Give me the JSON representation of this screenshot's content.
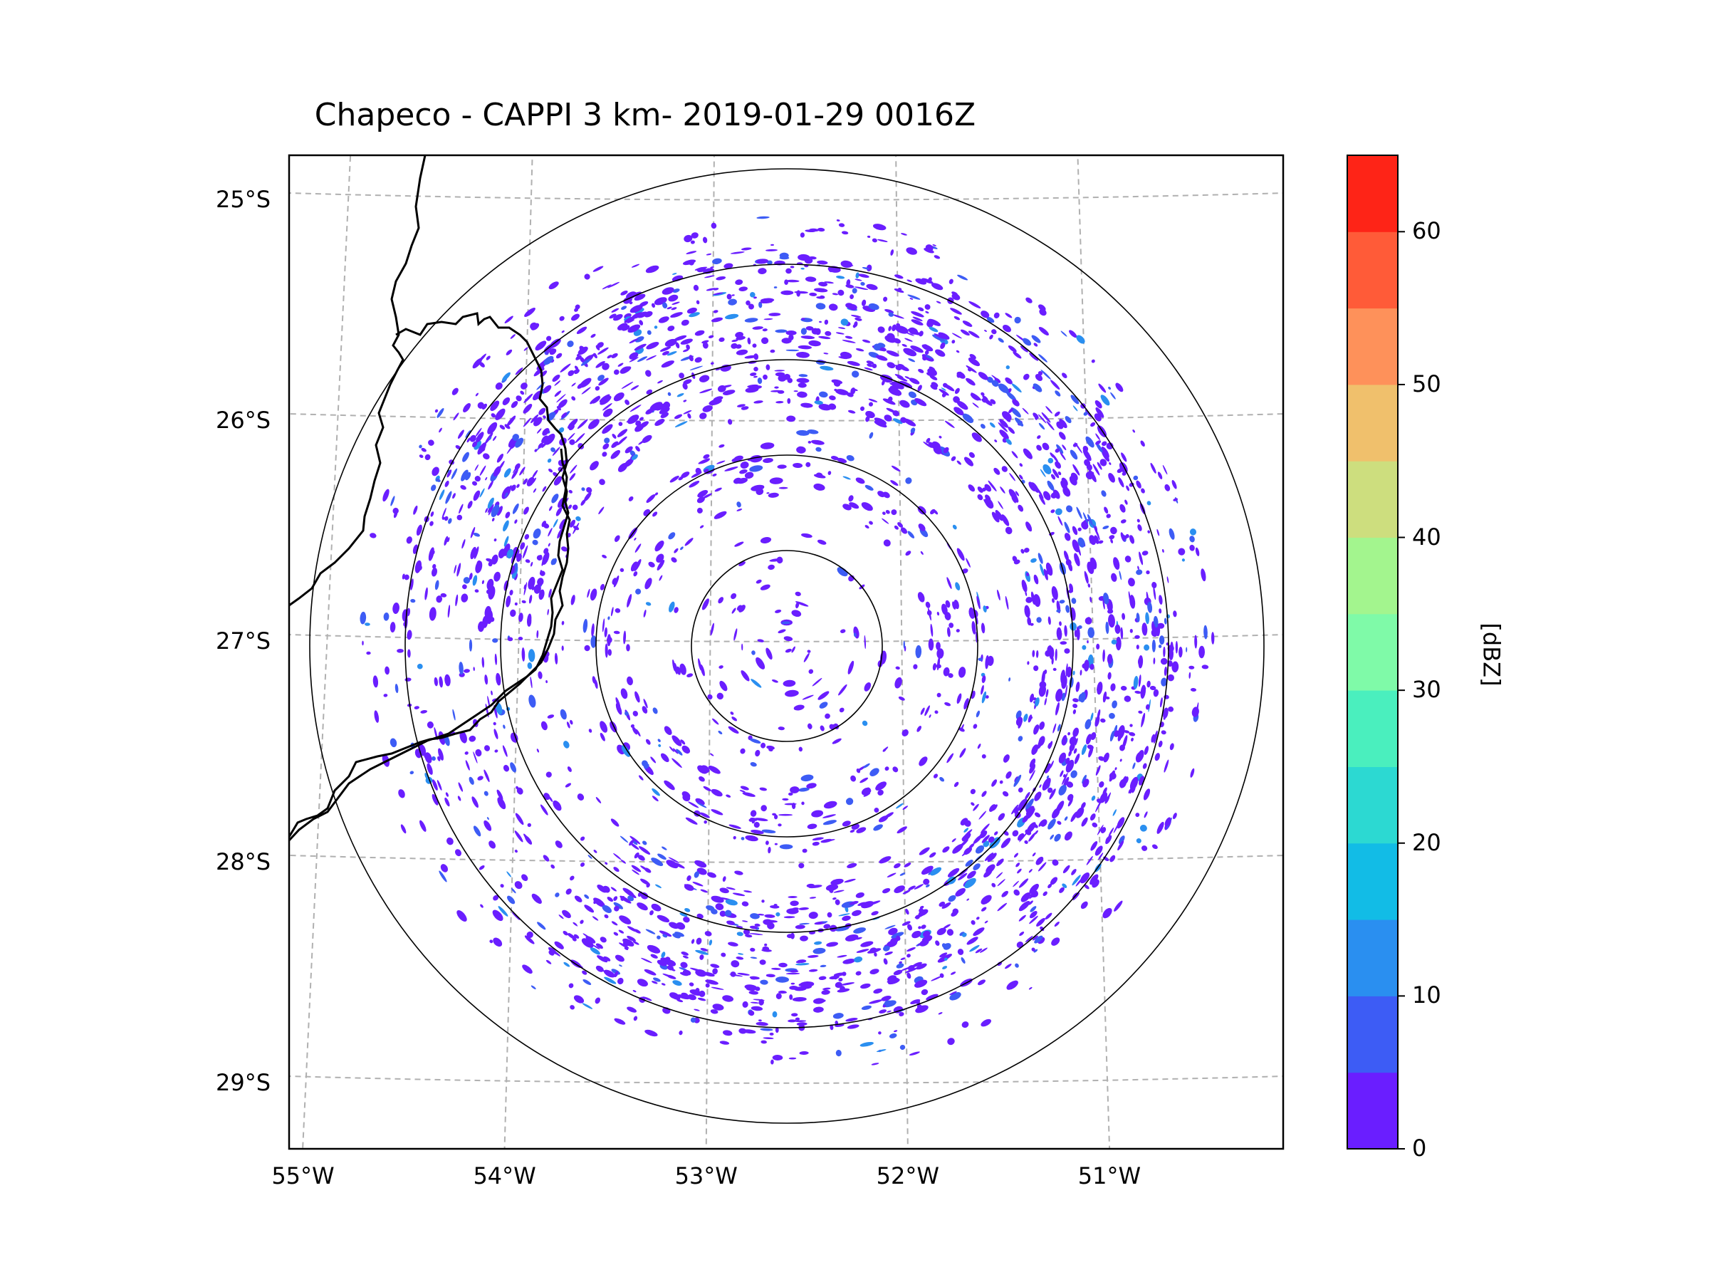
{
  "chart_data": {
    "type": "radar_ppi_map",
    "title": "Chapeco - CAPPI 3 km- 2019-01-29 0016Z",
    "radar_center": {
      "lon": -52.6,
      "lat": -27.02
    },
    "range_rings_km": [
      50,
      100,
      150,
      200,
      250
    ],
    "map_extent": {
      "lon_min": -55.2,
      "lon_max": -50.0,
      "lat_min": -29.3,
      "lat_max": -24.8
    },
    "xticks": [
      {
        "value": -55,
        "label": "55°W"
      },
      {
        "value": -54,
        "label": "54°W"
      },
      {
        "value": -53,
        "label": "53°W"
      },
      {
        "value": -52,
        "label": "52°W"
      },
      {
        "value": -51,
        "label": "51°W"
      }
    ],
    "yticks": [
      {
        "value": -25,
        "label": "25°S"
      },
      {
        "value": -26,
        "label": "26°S"
      },
      {
        "value": -27,
        "label": "27°S"
      },
      {
        "value": -28,
        "label": "28°S"
      },
      {
        "value": -29,
        "label": "29°S"
      }
    ],
    "gridlines": true,
    "reflectivity_coverage": "weak echoes 0-15 dBZ scattered out to ~200 km, dense ring 100-200 km",
    "colorbar": {
      "label": "[dBZ]",
      "vmin": 0,
      "vmax": 65,
      "ticks": [
        "0",
        "10",
        "20",
        "30",
        "40",
        "50",
        "60"
      ],
      "tick_values": [
        0,
        10,
        20,
        30,
        40,
        50,
        60
      ],
      "levels": [
        0,
        5,
        10,
        15,
        20,
        25,
        30,
        35,
        40,
        45,
        50,
        55,
        60,
        65
      ],
      "colors": [
        "#6a1eff",
        "#3d5cf5",
        "#2a8ff0",
        "#12bce6",
        "#2cd9d2",
        "#4aefbe",
        "#7ffaa8",
        "#a3f58e",
        "#cdde7e",
        "#f0c06c",
        "#fe915a",
        "#ff5b38",
        "#fe2417"
      ]
    }
  }
}
